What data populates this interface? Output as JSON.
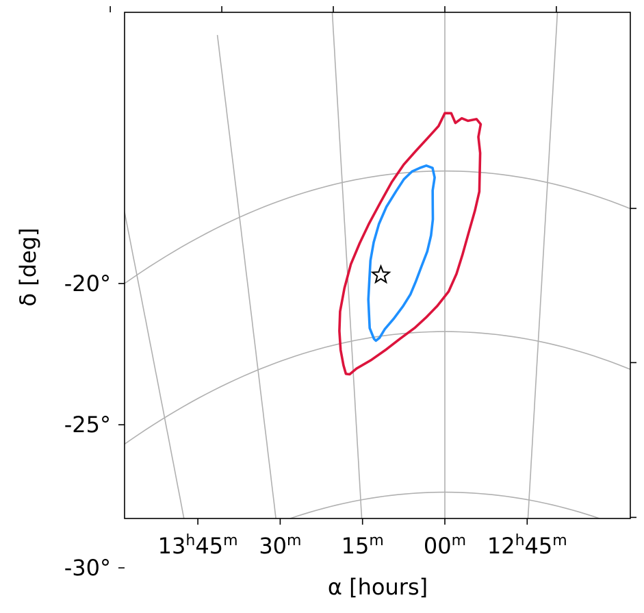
{
  "chart_data": {
    "type": "contour",
    "xlabel": "α [hours]",
    "ylabel": "δ [deg]",
    "x_ticks": [
      {
        "ra_h": 13.75,
        "label": [
          {
            "t": "13"
          },
          {
            "t": "h",
            "sup": true
          },
          {
            "t": "45"
          },
          {
            "t": "m",
            "sup": true
          }
        ]
      },
      {
        "ra_h": 13.5,
        "label": [
          {
            "t": "30"
          },
          {
            "t": "m",
            "sup": true
          }
        ]
      },
      {
        "ra_h": 13.25,
        "label": [
          {
            "t": "15"
          },
          {
            "t": "m",
            "sup": true
          }
        ]
      },
      {
        "ra_h": 13.0,
        "label": [
          {
            "t": "00"
          },
          {
            "t": "m",
            "sup": true
          }
        ]
      },
      {
        "ra_h": 12.75,
        "label": [
          {
            "t": "12"
          },
          {
            "t": "h",
            "sup": true
          },
          {
            "t": "45"
          },
          {
            "t": "m",
            "sup": true
          }
        ]
      }
    ],
    "y_ticks": [
      {
        "dec": -20,
        "label": "-20°"
      },
      {
        "dec": -25,
        "label": "-25°"
      },
      {
        "dec": -30,
        "label": "-30°"
      }
    ],
    "xlim_hours": [
      13.78,
      12.55
    ],
    "ylim_deg": [
      -31.0,
      -15.2
    ],
    "grid": true,
    "series": [
      {
        "level": "outer",
        "color": "#dc143c",
        "points": [
          [
            13.27,
            -25.98
          ],
          [
            13.26,
            -26.02
          ],
          [
            13.24,
            -25.88
          ],
          [
            13.2,
            -25.7
          ],
          [
            13.16,
            -25.45
          ],
          [
            13.12,
            -25.15
          ],
          [
            13.08,
            -24.85
          ],
          [
            13.05,
            -24.55
          ],
          [
            13.02,
            -24.2
          ],
          [
            12.99,
            -23.75
          ],
          [
            12.97,
            -23.2
          ],
          [
            12.955,
            -22.6
          ],
          [
            12.94,
            -21.9
          ],
          [
            12.925,
            -21.2
          ],
          [
            12.915,
            -20.6
          ],
          [
            12.915,
            -20.0
          ],
          [
            12.915,
            -19.4
          ],
          [
            12.92,
            -18.9
          ],
          [
            12.915,
            -18.5
          ],
          [
            12.925,
            -18.35
          ],
          [
            12.945,
            -18.42
          ],
          [
            12.96,
            -18.35
          ],
          [
            12.975,
            -18.5
          ],
          [
            12.985,
            -18.2
          ],
          [
            13.0,
            -18.2
          ],
          [
            13.015,
            -18.6
          ],
          [
            13.04,
            -18.95
          ],
          [
            13.07,
            -19.35
          ],
          [
            13.1,
            -19.75
          ],
          [
            13.13,
            -20.25
          ],
          [
            13.16,
            -20.85
          ],
          [
            13.19,
            -21.45
          ],
          [
            13.215,
            -22.0
          ],
          [
            13.24,
            -22.6
          ],
          [
            13.26,
            -23.3
          ],
          [
            13.275,
            -24.0
          ],
          [
            13.28,
            -24.6
          ],
          [
            13.28,
            -25.2
          ],
          [
            13.275,
            -25.7
          ],
          [
            13.27,
            -25.98
          ]
        ]
      },
      {
        "level": "inner",
        "color": "#1e90ff",
        "points": [
          [
            13.19,
            -25.05
          ],
          [
            13.185,
            -25.12
          ],
          [
            13.175,
            -25.05
          ],
          [
            13.16,
            -24.8
          ],
          [
            13.135,
            -24.5
          ],
          [
            13.11,
            -24.15
          ],
          [
            13.09,
            -23.8
          ],
          [
            13.075,
            -23.4
          ],
          [
            13.06,
            -22.95
          ],
          [
            13.045,
            -22.5
          ],
          [
            13.035,
            -22.0
          ],
          [
            13.03,
            -21.5
          ],
          [
            13.03,
            -21.05
          ],
          [
            13.03,
            -20.6
          ],
          [
            13.025,
            -20.2
          ],
          [
            13.03,
            -19.9
          ],
          [
            13.045,
            -19.82
          ],
          [
            13.06,
            -19.88
          ],
          [
            13.08,
            -19.98
          ],
          [
            13.1,
            -20.2
          ],
          [
            13.12,
            -20.55
          ],
          [
            13.145,
            -21.0
          ],
          [
            13.165,
            -21.5
          ],
          [
            13.18,
            -22.05
          ],
          [
            13.19,
            -22.6
          ],
          [
            13.195,
            -23.2
          ],
          [
            13.2,
            -23.8
          ],
          [
            13.2,
            -24.35
          ],
          [
            13.2,
            -24.7
          ],
          [
            13.19,
            -25.05
          ]
        ]
      }
    ],
    "marker": {
      "ra_h": 13.165,
      "dec": -23.1,
      "shape": "star"
    }
  }
}
